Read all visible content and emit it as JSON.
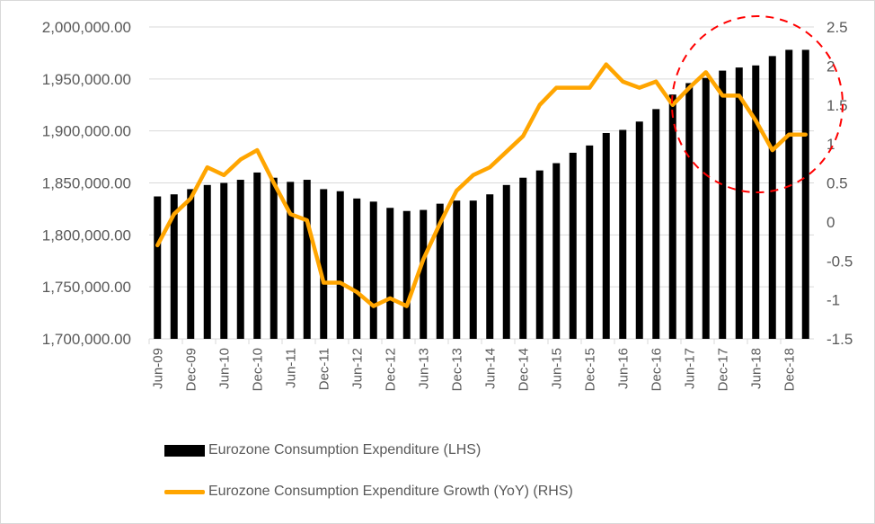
{
  "chart_data": {
    "type": "bar+line",
    "title": "",
    "categories": [
      "Jun-09",
      "Sep-09",
      "Dec-09",
      "Mar-10",
      "Jun-10",
      "Sep-10",
      "Dec-10",
      "Mar-11",
      "Jun-11",
      "Sep-11",
      "Dec-11",
      "Mar-12",
      "Jun-12",
      "Sep-12",
      "Dec-12",
      "Mar-13",
      "Jun-13",
      "Sep-13",
      "Dec-13",
      "Mar-14",
      "Jun-14",
      "Sep-14",
      "Dec-14",
      "Mar-15",
      "Jun-15",
      "Sep-15",
      "Dec-15",
      "Mar-16",
      "Jun-16",
      "Sep-16",
      "Dec-16",
      "Mar-17",
      "Jun-17",
      "Sep-17",
      "Dec-17",
      "Mar-18",
      "Jun-18",
      "Sep-18",
      "Dec-18",
      "Mar-19"
    ],
    "x_tick_labels": [
      "Jun-09",
      "Dec-09",
      "Jun-10",
      "Dec-10",
      "Jun-11",
      "Dec-11",
      "Jun-12",
      "Dec-12",
      "Jun-13",
      "Dec-13",
      "Jun-14",
      "Dec-14",
      "Jun-15",
      "Dec-15",
      "Jun-16",
      "Dec-16",
      "Jun-17",
      "Dec-17",
      "Jun-18",
      "Dec-18"
    ],
    "series": [
      {
        "name": "Eurozone Consumption Expenditure (LHS)",
        "type": "bar",
        "axis": "left",
        "color": "#000000",
        "values": [
          1837000,
          1839000,
          1844000,
          1848000,
          1850000,
          1853000,
          1860000,
          1855000,
          1851000,
          1853000,
          1844000,
          1842000,
          1835000,
          1832000,
          1826000,
          1823000,
          1824000,
          1830000,
          1833000,
          1833000,
          1839000,
          1848000,
          1855000,
          1862000,
          1869000,
          1879000,
          1886000,
          1898000,
          1901000,
          1909000,
          1921000,
          1935000,
          1946000,
          1951000,
          1958000,
          1961000,
          1963000,
          1972000,
          1978000,
          1978000
        ]
      },
      {
        "name": "Eurozone Consumption Expenditure Growth (YoY) (RHS)",
        "type": "line",
        "axis": "right",
        "color": "#FFA500",
        "values": [
          -0.3,
          0.1,
          0.3,
          0.7,
          0.6,
          0.8,
          0.92,
          0.5,
          0.1,
          0.02,
          -0.78,
          -0.78,
          -0.9,
          -1.08,
          -0.98,
          -1.08,
          -0.48,
          -0.02,
          0.4,
          0.6,
          0.7,
          0.9,
          1.1,
          1.5,
          1.72,
          1.72,
          1.72,
          2.02,
          1.8,
          1.72,
          1.8,
          1.5,
          1.72,
          1.92,
          1.62,
          1.62,
          1.3,
          0.92,
          1.12,
          1.12
        ]
      }
    ],
    "y_left": {
      "ticks": [
        "2,000,000.00",
        "1,950,000.00",
        "1,900,000.00",
        "1,850,000.00",
        "1,800,000.00",
        "1,750,000.00",
        "1,700,000.00"
      ],
      "min": 1700000,
      "max": 2000000,
      "step": 50000
    },
    "y_right": {
      "ticks": [
        "2.5",
        "2",
        "1.5",
        "1",
        "0.5",
        "0",
        "-0.5",
        "-1",
        "-1.5"
      ],
      "min": -1.5,
      "max": 2.5,
      "step": 0.5
    },
    "xlabel": "",
    "ylabel": "",
    "grid": true,
    "legend_position": "bottom",
    "annotation": {
      "type": "dashed-circle",
      "color": "#FF0000",
      "target_range": [
        "Mar-17",
        "Mar-19"
      ]
    }
  },
  "legend": {
    "bar_label": "Eurozone Consumption Expenditure (LHS)",
    "line_label": "Eurozone Consumption Expenditure Growth (YoY) (RHS)"
  }
}
